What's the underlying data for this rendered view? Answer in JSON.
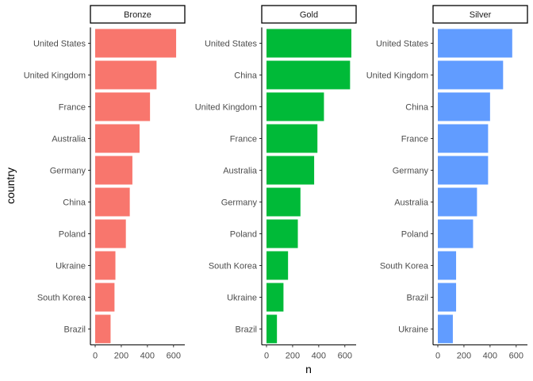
{
  "chart_data": {
    "type": "bar",
    "orientation": "horizontal",
    "xlabel": "n",
    "ylabel": "country",
    "xlim": [
      0,
      650
    ],
    "xticks": [
      0,
      200,
      400,
      600
    ],
    "grid": false,
    "facets": [
      {
        "name": "Bronze",
        "color": "#F8766D",
        "categories": [
          "United States",
          "United Kingdom",
          "France",
          "Australia",
          "Germany",
          "China",
          "Poland",
          "Ukraine",
          "South Korea",
          "Brazil"
        ],
        "values": [
          620,
          470,
          420,
          340,
          285,
          265,
          235,
          155,
          148,
          118
        ]
      },
      {
        "name": "Gold",
        "color": "#00BA38",
        "categories": [
          "United States",
          "China",
          "United Kingdom",
          "France",
          "Australia",
          "Germany",
          "Poland",
          "South Korea",
          "Ukraine",
          "Brazil"
        ],
        "values": [
          650,
          640,
          440,
          390,
          365,
          260,
          240,
          165,
          130,
          80
        ]
      },
      {
        "name": "Silver",
        "color": "#619CFF",
        "categories": [
          "United States",
          "United Kingdom",
          "China",
          "France",
          "Germany",
          "Australia",
          "Poland",
          "South Korea",
          "Brazil",
          "Ukraine"
        ],
        "values": [
          570,
          500,
          400,
          385,
          385,
          300,
          270,
          140,
          140,
          115
        ]
      }
    ]
  }
}
